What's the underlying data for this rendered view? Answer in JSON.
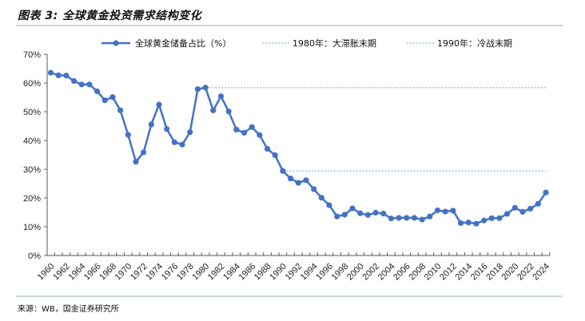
{
  "header": {
    "title": "图表 3: 全球黄金投资需求结构变化"
  },
  "footer": {
    "source": "来源：WB，国金证券研究所"
  },
  "colors": {
    "series": "#4472c4",
    "reference_line": "#9dc3e6",
    "axis": "#595959",
    "rule": "#c9d6df"
  },
  "chart_data": {
    "type": "line",
    "title": "全球黄金投资需求结构变化",
    "xlabel": "",
    "ylabel": "",
    "ylim": [
      0,
      70
    ],
    "yticks": [
      "0%",
      "10%",
      "20%",
      "30%",
      "40%",
      "50%",
      "60%",
      "70%"
    ],
    "xtick_labels": [
      "1960",
      "1962",
      "1964",
      "1966",
      "1968",
      "1970",
      "1972",
      "1974",
      "1976",
      "1978",
      "1980",
      "1982",
      "1984",
      "1986",
      "1988",
      "1990",
      "1992",
      "1994",
      "1996",
      "1998",
      "2000",
      "2002",
      "2004",
      "2006",
      "2008",
      "2010",
      "2012",
      "2014",
      "2016",
      "2018",
      "2020",
      "2022",
      "2024"
    ],
    "grid": false,
    "legend_position": "top",
    "x": [
      1960,
      1961,
      1962,
      1963,
      1964,
      1965,
      1966,
      1967,
      1968,
      1969,
      1970,
      1971,
      1972,
      1973,
      1974,
      1975,
      1976,
      1977,
      1978,
      1979,
      1980,
      1981,
      1982,
      1983,
      1984,
      1985,
      1986,
      1987,
      1988,
      1989,
      1990,
      1991,
      1992,
      1993,
      1994,
      1995,
      1996,
      1997,
      1998,
      1999,
      2000,
      2001,
      2002,
      2003,
      2004,
      2005,
      2006,
      2007,
      2008,
      2009,
      2010,
      2011,
      2012,
      2013,
      2014,
      2015,
      2016,
      2017,
      2018,
      2019,
      2020,
      2021,
      2022,
      2023,
      2024
    ],
    "series": [
      {
        "name": "全球黄金储备占比（%）",
        "style": "solid-line-with-markers",
        "values": [
          63.6,
          62.7,
          62.6,
          60.7,
          59.5,
          59.5,
          57.1,
          54.0,
          55.1,
          50.5,
          42.0,
          32.6,
          35.9,
          45.6,
          52.5,
          44.0,
          39.4,
          38.6,
          42.9,
          57.9,
          58.4,
          50.5,
          55.4,
          50.1,
          43.8,
          42.7,
          44.7,
          41.9,
          37.1,
          34.9,
          29.4,
          26.8,
          25.3,
          26.2,
          23.1,
          20.1,
          17.5,
          13.6,
          14.2,
          16.4,
          14.7,
          14.1,
          14.9,
          14.6,
          12.9,
          13.1,
          13.1,
          13.1,
          12.5,
          13.6,
          15.7,
          15.3,
          15.6,
          11.3,
          11.5,
          11.1,
          12.2,
          13.0,
          13.0,
          14.5,
          16.6,
          15.2,
          16.3,
          18.0,
          21.9
        ]
      },
      {
        "name": "1980年：大滞胀末期",
        "style": "dotted-reference",
        "x_start": 1980,
        "x_end": 2024,
        "value": 58.4
      },
      {
        "name": "1990年：冷战末期",
        "style": "dotted-reference",
        "x_start": 1990,
        "x_end": 2024,
        "value": 29.4
      }
    ]
  },
  "legend": {
    "items": [
      {
        "label": "全球黄金储备占比（%）"
      },
      {
        "label": "1980年：大滞胀末期"
      },
      {
        "label": "1990年：冷战末期"
      }
    ]
  }
}
